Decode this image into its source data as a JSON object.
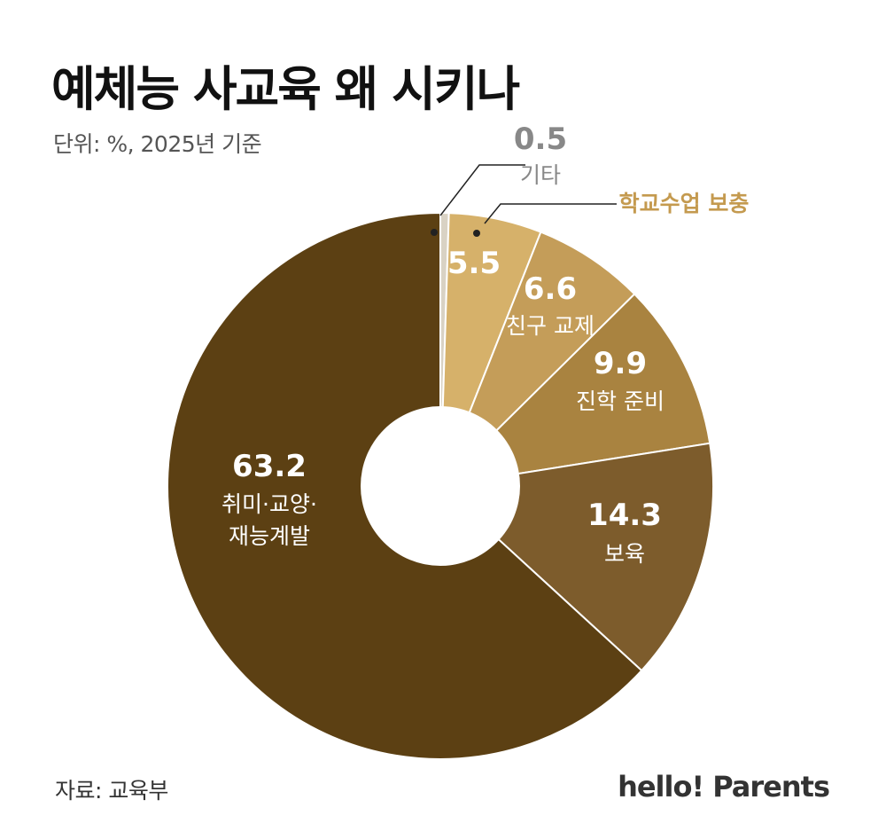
{
  "title": "예체능 사교육 왜 시키나",
  "subtitle": "단위: %, 2025년 기준",
  "source": "자료: 교육부",
  "brand": "hello! Parents",
  "chart_data": {
    "type": "pie",
    "variant": "donut",
    "title": "예체능 사교육 왜 시키나",
    "unit": "%",
    "slices": [
      {
        "label": "기타",
        "value": 0.5,
        "value_text": "0.5",
        "color": "#d9d2c4"
      },
      {
        "label": "학교수업 보충",
        "value": 5.5,
        "value_text": "5.5",
        "color": "#d6b16a"
      },
      {
        "label": "친구 교제",
        "value": 6.6,
        "value_text": "6.6",
        "color": "#c49d59"
      },
      {
        "label": "진학 준비",
        "value": 9.9,
        "value_text": "9.9",
        "color": "#a98340"
      },
      {
        "label": "보육",
        "value": 14.3,
        "value_text": "14.3",
        "color": "#7d5c2c"
      },
      {
        "label": "취미·교양·\n재능계발",
        "value": 63.2,
        "value_text": "63.2",
        "color": "#5c4013"
      }
    ],
    "outside_label_colors": {
      "기타": "#888888",
      "학교수업 보충": "#c49a4f"
    }
  }
}
